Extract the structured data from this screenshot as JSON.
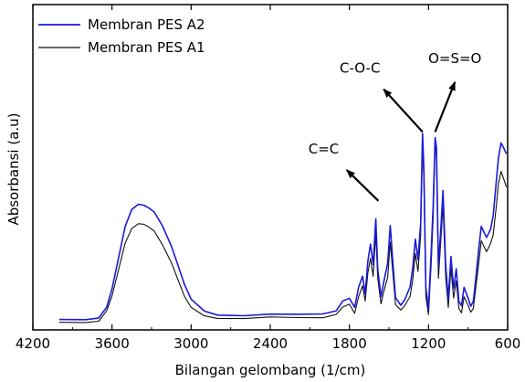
{
  "chart_data": {
    "type": "line",
    "title": "",
    "xlabel": "Bilangan gelombang (1/cm)",
    "ylabel": "Absorbansi (a.u)",
    "xlim": [
      4200,
      600
    ],
    "x_reversed": true,
    "xticks": [
      4200,
      3600,
      3000,
      2400,
      1800,
      1200,
      600
    ],
    "ylim": [
      0,
      1
    ],
    "y_ticks_shown": false,
    "grid": false,
    "legend_position": "top-left",
    "series": [
      {
        "name": "Membran PES A2",
        "color": "#1a1adb",
        "points": [
          [
            4000,
            0.022
          ],
          [
            3800,
            0.024
          ],
          [
            3700,
            0.03
          ],
          [
            3640,
            0.07
          ],
          [
            3600,
            0.15
          ],
          [
            3550,
            0.28
          ],
          [
            3500,
            0.41
          ],
          [
            3450,
            0.48
          ],
          [
            3400,
            0.502
          ],
          [
            3360,
            0.505
          ],
          [
            3320,
            0.49
          ],
          [
            3280,
            0.47
          ],
          [
            3220,
            0.42
          ],
          [
            3150,
            0.33
          ],
          [
            3100,
            0.25
          ],
          [
            3050,
            0.17
          ],
          [
            3000,
            0.11
          ],
          [
            2900,
            0.06
          ],
          [
            2800,
            0.042
          ],
          [
            2600,
            0.034
          ],
          [
            2400,
            0.04
          ],
          [
            2200,
            0.044
          ],
          [
            2000,
            0.048
          ],
          [
            1900,
            0.06
          ],
          [
            1850,
            0.1
          ],
          [
            1800,
            0.11
          ],
          [
            1760,
            0.075
          ],
          [
            1730,
            0.16
          ],
          [
            1700,
            0.2
          ],
          [
            1680,
            0.13
          ],
          [
            1660,
            0.27
          ],
          [
            1640,
            0.34
          ],
          [
            1620,
            0.25
          ],
          [
            1600,
            0.44
          ],
          [
            1585,
            0.23
          ],
          [
            1560,
            0.12
          ],
          [
            1540,
            0.18
          ],
          [
            1510,
            0.26
          ],
          [
            1490,
            0.42
          ],
          [
            1475,
            0.3
          ],
          [
            1450,
            0.11
          ],
          [
            1410,
            0.08
          ],
          [
            1380,
            0.1
          ],
          [
            1340,
            0.16
          ],
          [
            1320,
            0.24
          ],
          [
            1300,
            0.36
          ],
          [
            1280,
            0.27
          ],
          [
            1260,
            0.42
          ],
          [
            1245,
            0.8
          ],
          [
            1235,
            0.65
          ],
          [
            1220,
            0.16
          ],
          [
            1200,
            0.07
          ],
          [
            1180,
            0.3
          ],
          [
            1165,
            0.5
          ],
          [
            1150,
            0.79
          ],
          [
            1140,
            0.74
          ],
          [
            1125,
            0.24
          ],
          [
            1105,
            0.42
          ],
          [
            1090,
            0.56
          ],
          [
            1070,
            0.25
          ],
          [
            1050,
            0.11
          ],
          [
            1030,
            0.29
          ],
          [
            1010,
            0.15
          ],
          [
            990,
            0.23
          ],
          [
            970,
            0.095
          ],
          [
            950,
            0.08
          ],
          [
            930,
            0.16
          ],
          [
            900,
            0.11
          ],
          [
            880,
            0.08
          ],
          [
            860,
            0.1
          ],
          [
            840,
            0.2
          ],
          [
            820,
            0.31
          ],
          [
            800,
            0.41
          ],
          [
            780,
            0.39
          ],
          [
            760,
            0.37
          ],
          [
            730,
            0.4
          ],
          [
            710,
            0.46
          ],
          [
            690,
            0.58
          ],
          [
            670,
            0.7
          ],
          [
            650,
            0.76
          ],
          [
            630,
            0.74
          ],
          [
            610,
            0.72
          ]
        ]
      },
      {
        "name": "Membran PES A1",
        "color": "#111111",
        "points": [
          [
            4000,
            0.01
          ],
          [
            3800,
            0.012
          ],
          [
            3700,
            0.016
          ],
          [
            3640,
            0.055
          ],
          [
            3600,
            0.12
          ],
          [
            3550,
            0.23
          ],
          [
            3500,
            0.34
          ],
          [
            3450,
            0.4
          ],
          [
            3400,
            0.42
          ],
          [
            3360,
            0.425
          ],
          [
            3320,
            0.41
          ],
          [
            3280,
            0.39
          ],
          [
            3220,
            0.34
          ],
          [
            3150,
            0.26
          ],
          [
            3100,
            0.19
          ],
          [
            3050,
            0.12
          ],
          [
            3000,
            0.075
          ],
          [
            2900,
            0.04
          ],
          [
            2800,
            0.028
          ],
          [
            2600,
            0.022
          ],
          [
            2400,
            0.028
          ],
          [
            2200,
            0.03
          ],
          [
            2000,
            0.032
          ],
          [
            1900,
            0.045
          ],
          [
            1850,
            0.075
          ],
          [
            1800,
            0.085
          ],
          [
            1760,
            0.05
          ],
          [
            1730,
            0.12
          ],
          [
            1700,
            0.16
          ],
          [
            1680,
            0.1
          ],
          [
            1660,
            0.22
          ],
          [
            1640,
            0.28
          ],
          [
            1620,
            0.2
          ],
          [
            1600,
            0.38
          ],
          [
            1585,
            0.19
          ],
          [
            1560,
            0.09
          ],
          [
            1540,
            0.14
          ],
          [
            1510,
            0.2
          ],
          [
            1490,
            0.35
          ],
          [
            1475,
            0.25
          ],
          [
            1450,
            0.08
          ],
          [
            1410,
            0.06
          ],
          [
            1380,
            0.075
          ],
          [
            1340,
            0.12
          ],
          [
            1320,
            0.19
          ],
          [
            1300,
            0.3
          ],
          [
            1280,
            0.22
          ],
          [
            1260,
            0.37
          ],
          [
            1245,
            0.77
          ],
          [
            1235,
            0.6
          ],
          [
            1220,
            0.12
          ],
          [
            1200,
            0.045
          ],
          [
            1180,
            0.25
          ],
          [
            1165,
            0.45
          ],
          [
            1150,
            0.77
          ],
          [
            1140,
            0.7
          ],
          [
            1125,
            0.19
          ],
          [
            1105,
            0.37
          ],
          [
            1090,
            0.5
          ],
          [
            1070,
            0.2
          ],
          [
            1050,
            0.075
          ],
          [
            1030,
            0.24
          ],
          [
            1010,
            0.11
          ],
          [
            990,
            0.18
          ],
          [
            970,
            0.065
          ],
          [
            950,
            0.05
          ],
          [
            930,
            0.12
          ],
          [
            900,
            0.08
          ],
          [
            880,
            0.055
          ],
          [
            860,
            0.07
          ],
          [
            840,
            0.16
          ],
          [
            820,
            0.25
          ],
          [
            800,
            0.35
          ],
          [
            780,
            0.33
          ],
          [
            760,
            0.31
          ],
          [
            730,
            0.34
          ],
          [
            710,
            0.38
          ],
          [
            690,
            0.48
          ],
          [
            670,
            0.59
          ],
          [
            650,
            0.64
          ],
          [
            630,
            0.61
          ],
          [
            610,
            0.58
          ]
        ]
      }
    ],
    "annotations": [
      {
        "text": "C=C",
        "arrow_from": [
          1580,
          0.52
        ],
        "arrow_to": [
          1820,
          0.65
        ],
        "label_at": [
          1995,
          0.72
        ]
      },
      {
        "text": "C-O-C",
        "arrow_from": [
          1245,
          0.81
        ],
        "arrow_to": [
          1540,
          0.99
        ],
        "label_at": [
          1720,
          1.06
        ]
      },
      {
        "text": "O=S=O",
        "arrow_from": [
          1150,
          0.81
        ],
        "arrow_to": [
          1000,
          1.02
        ],
        "label_at": [
          1000,
          1.1
        ]
      }
    ]
  }
}
